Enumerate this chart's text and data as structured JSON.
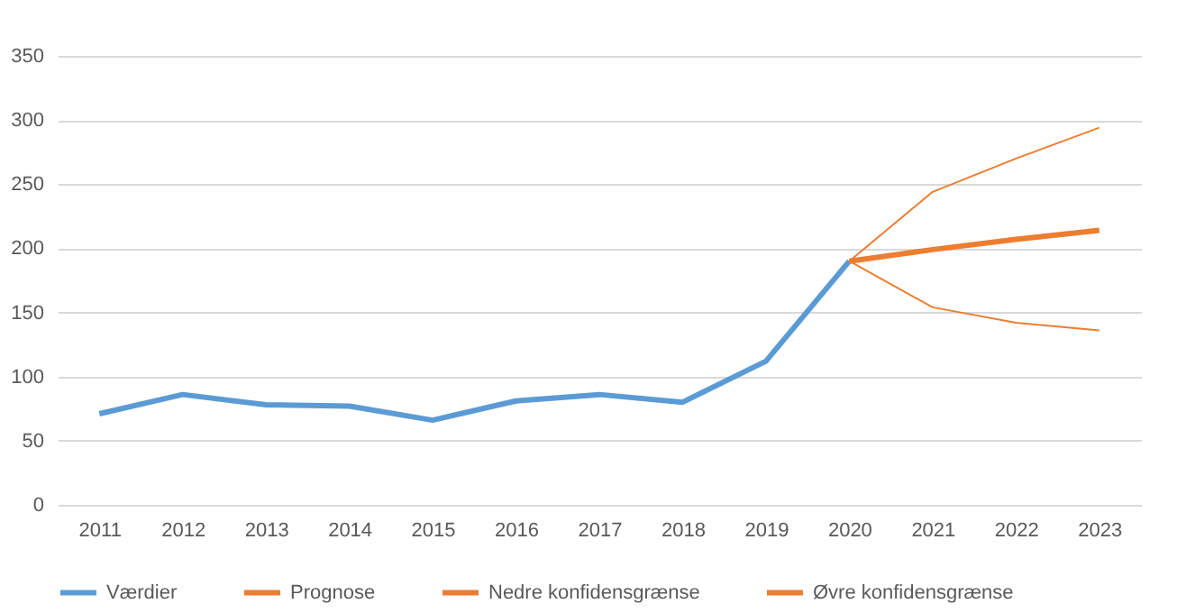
{
  "chart_data": {
    "type": "line",
    "categories": [
      "2011",
      "2012",
      "2013",
      "2014",
      "2015",
      "2016",
      "2017",
      "2018",
      "2019",
      "2020",
      "2021",
      "2022",
      "2023"
    ],
    "series": [
      {
        "name": "Værdier",
        "color": "#5b9bd5",
        "values": [
          71,
          86,
          78,
          77,
          66,
          81,
          86,
          80,
          112,
          190,
          null,
          null,
          null
        ]
      },
      {
        "name": "Prognose",
        "color": "#ed7d31",
        "values": [
          null,
          null,
          null,
          null,
          null,
          null,
          null,
          null,
          null,
          190,
          199,
          207,
          214
        ]
      },
      {
        "name": "Nedre konfidensgrænse",
        "color": "#ed7d31",
        "values": [
          null,
          null,
          null,
          null,
          null,
          null,
          null,
          null,
          null,
          190,
          154,
          142,
          136
        ]
      },
      {
        "name": "Øvre konfidensgrænse",
        "color": "#ed7d31",
        "values": [
          null,
          null,
          null,
          null,
          null,
          null,
          null,
          null,
          null,
          190,
          244,
          270,
          294
        ]
      }
    ],
    "ylim": [
      0,
      350
    ],
    "yticks": [
      0,
      50,
      100,
      150,
      200,
      250,
      300,
      350
    ],
    "grid": "y",
    "legend": "bottom",
    "marker": "none",
    "line_style": "solid"
  }
}
